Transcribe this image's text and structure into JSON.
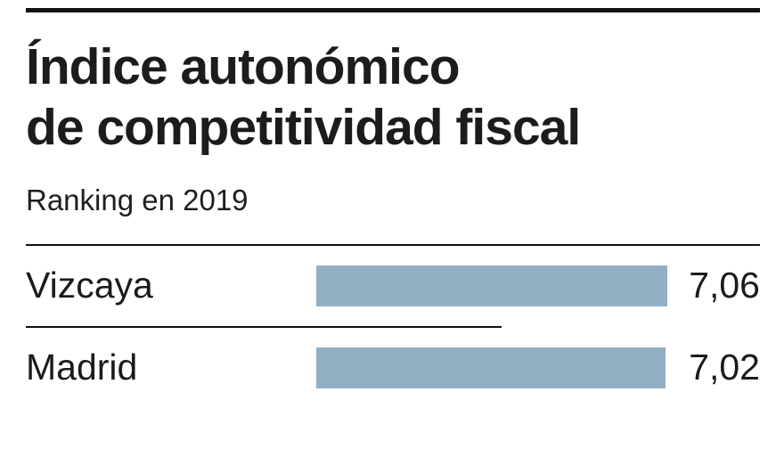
{
  "header": {
    "title_line1": "Índice autonómico",
    "title_line2": "de competitividad fiscal",
    "subtitle": "Ranking en 2019"
  },
  "chart_data": {
    "type": "bar",
    "orientation": "horizontal",
    "title": "Índice autonómico de competitividad fiscal",
    "subtitle": "Ranking en 2019",
    "categories": [
      "Vizcaya",
      "Madrid"
    ],
    "values": [
      7.06,
      7.02
    ],
    "value_labels": [
      "7,06",
      "7,02"
    ],
    "xlim": [
      0,
      7.06
    ],
    "bar_color": "#93afc4",
    "grid": false,
    "legend": false
  }
}
